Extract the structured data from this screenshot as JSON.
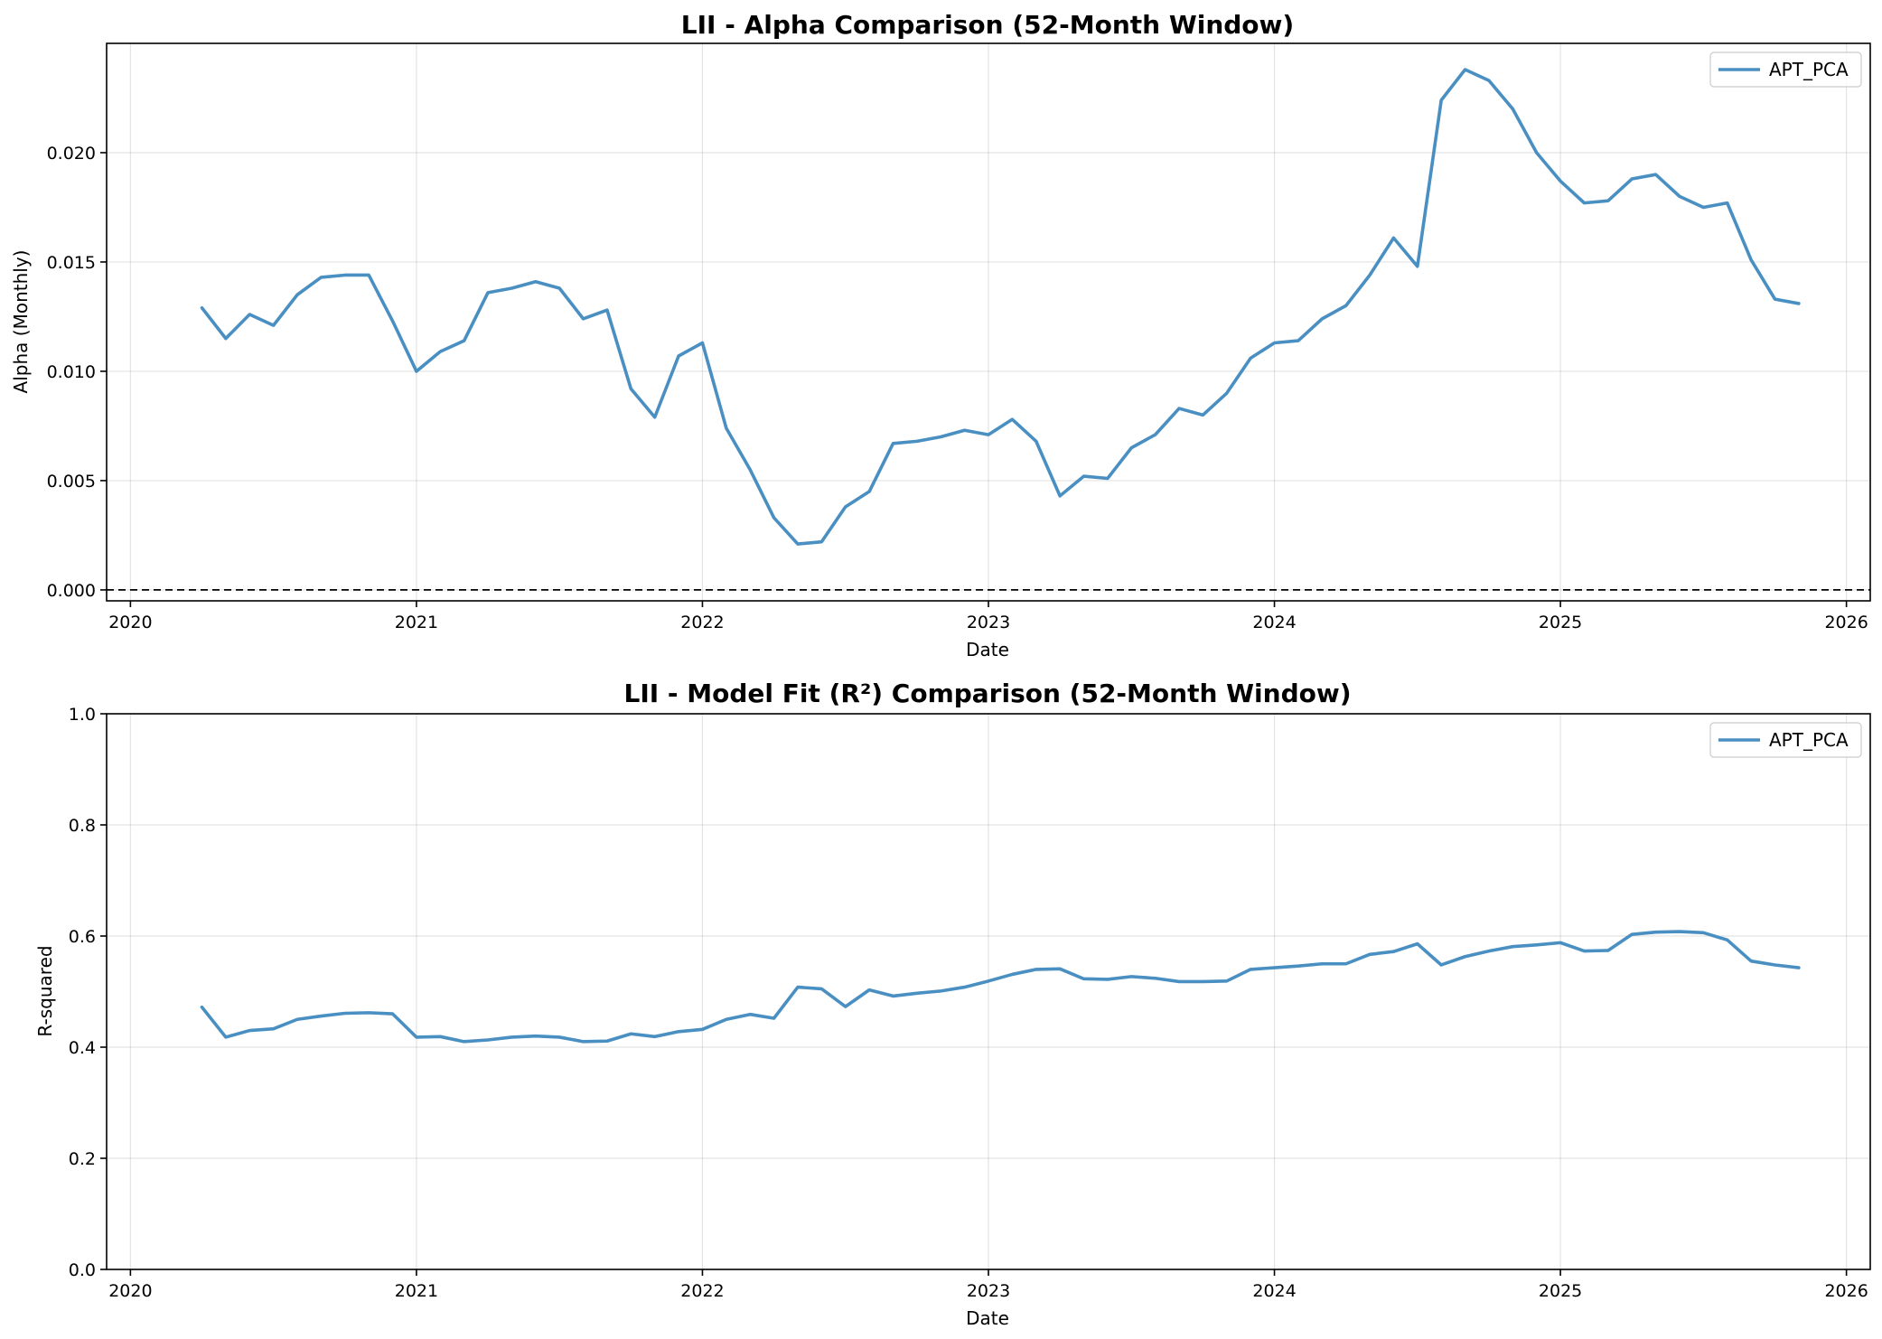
{
  "chart_data": [
    {
      "type": "line",
      "title": "LII - Alpha Comparison (52-Month Window)",
      "xlabel": "Date",
      "ylabel": "Alpha (Monthly)",
      "xlim": [
        "2019-12-01",
        "2026-02-01"
      ],
      "ylim": [
        -0.0005,
        0.025
      ],
      "x_ticks": [
        "2020",
        "2021",
        "2022",
        "2023",
        "2024",
        "2025",
        "2026"
      ],
      "y_ticks": [
        "0.000",
        "0.005",
        "0.010",
        "0.015",
        "0.020"
      ],
      "grid": true,
      "legend_position": "top-right",
      "reference_line": {
        "y": 0,
        "style": "dashed",
        "color": "#000000"
      },
      "series": [
        {
          "name": "APT_PCA",
          "color": "#4a8fc2",
          "start": "2020-04",
          "values": [
            0.0129,
            0.0115,
            0.0126,
            0.0121,
            0.0135,
            0.0143,
            0.0144,
            0.0144,
            0.0123,
            0.01,
            0.0109,
            0.0114,
            0.0136,
            0.0138,
            0.0141,
            0.0138,
            0.0124,
            0.0128,
            0.0092,
            0.0079,
            0.0107,
            0.0113,
            0.0074,
            0.0055,
            0.0033,
            0.0021,
            0.0022,
            0.0038,
            0.0045,
            0.0067,
            0.0068,
            0.007,
            0.0073,
            0.0071,
            0.0078,
            0.0068,
            0.0043,
            0.0052,
            0.0051,
            0.0065,
            0.0071,
            0.0083,
            0.008,
            0.009,
            0.0106,
            0.0113,
            0.0114,
            0.0124,
            0.013,
            0.0144,
            0.0161,
            0.0148,
            0.0224,
            0.0238,
            0.0233,
            0.022,
            0.02,
            0.0187,
            0.0177,
            0.0178,
            0.0188,
            0.019,
            0.018,
            0.0175,
            0.0177,
            0.0151,
            0.0133,
            0.0131
          ]
        }
      ]
    },
    {
      "type": "line",
      "title": "LII - Model Fit (R²) Comparison (52-Month Window)",
      "xlabel": "Date",
      "ylabel": "R-squared",
      "xlim": [
        "2019-12-01",
        "2026-02-01"
      ],
      "ylim": [
        0,
        1
      ],
      "x_ticks": [
        "2020",
        "2021",
        "2022",
        "2023",
        "2024",
        "2025",
        "2026"
      ],
      "y_ticks": [
        "0.0",
        "0.2",
        "0.4",
        "0.6",
        "0.8",
        "1.0"
      ],
      "grid": true,
      "legend_position": "top-right",
      "series": [
        {
          "name": "APT_PCA",
          "color": "#4a8fc2",
          "start": "2020-04",
          "values": [
            0.472,
            0.418,
            0.43,
            0.433,
            0.45,
            0.456,
            0.461,
            0.462,
            0.46,
            0.418,
            0.419,
            0.41,
            0.413,
            0.418,
            0.42,
            0.418,
            0.41,
            0.411,
            0.424,
            0.419,
            0.428,
            0.432,
            0.45,
            0.459,
            0.452,
            0.508,
            0.505,
            0.473,
            0.503,
            0.492,
            0.497,
            0.501,
            0.508,
            0.519,
            0.531,
            0.54,
            0.541,
            0.523,
            0.522,
            0.527,
            0.524,
            0.518,
            0.518,
            0.519,
            0.54,
            0.543,
            0.546,
            0.55,
            0.55,
            0.567,
            0.572,
            0.586,
            0.548,
            0.563,
            0.573,
            0.581,
            0.584,
            0.588,
            0.573,
            0.574,
            0.603,
            0.607,
            0.608,
            0.606,
            0.593,
            0.555,
            0.548,
            0.543
          ]
        }
      ]
    }
  ]
}
